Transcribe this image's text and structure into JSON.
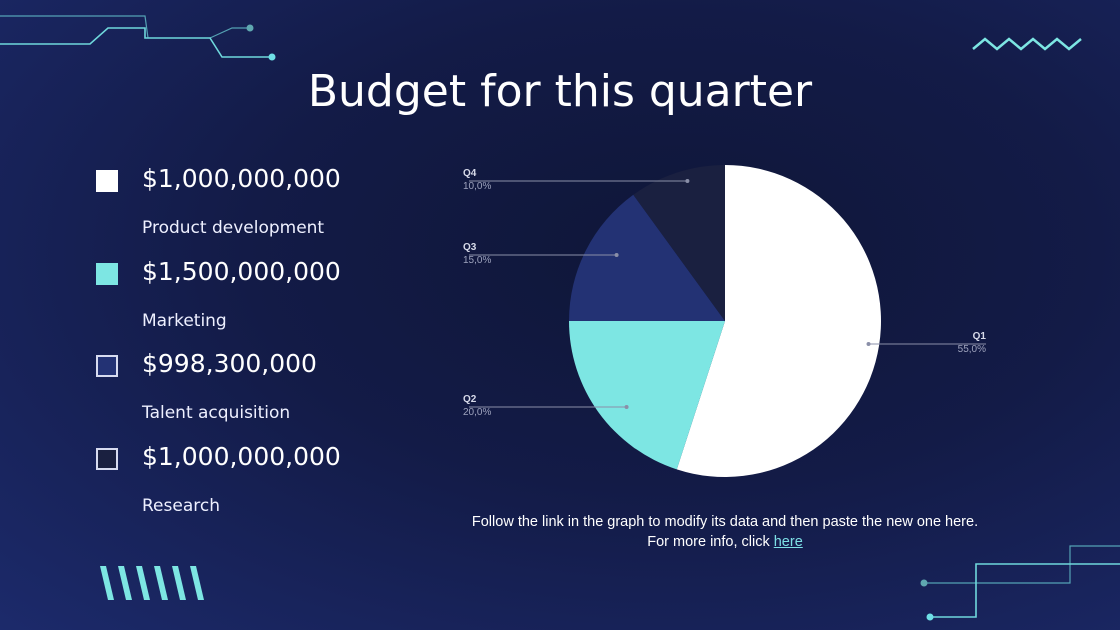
{
  "slide": {
    "title": "Budget for this quarter"
  },
  "legend": [
    {
      "amount": "$1,000,000,000",
      "label": "Product development",
      "color": "#ffffff",
      "border": "#ffffff"
    },
    {
      "amount": "$1,500,000,000",
      "label": "Marketing",
      "color": "#7de6e3",
      "border": "#7de6e3"
    },
    {
      "amount": "$998,300,000",
      "label": "Talent acquisition",
      "color": "#233274",
      "border": "#d7dbf0"
    },
    {
      "amount": "$1,000,000,000",
      "label": "Research",
      "color": "#1a2040",
      "border": "#d7dbf0"
    }
  ],
  "footnote": {
    "line1": "Follow the link in the graph to modify its data and then paste the new one here.",
    "line2_prefix": "For more info, click ",
    "link_text": "here"
  },
  "colors": {
    "accent_cyan": "#7de6e3",
    "background": "#131b47"
  },
  "chart_data": {
    "type": "pie",
    "slices": [
      {
        "name": "Q1",
        "value": 55.0,
        "label": "55,0%",
        "color": "#ffffff",
        "label_side": "right"
      },
      {
        "name": "Q2",
        "value": 20.0,
        "label": "20,0%",
        "color": "#7de6e3",
        "label_side": "left"
      },
      {
        "name": "Q3",
        "value": 15.0,
        "label": "15,0%",
        "color": "#233274",
        "label_side": "left"
      },
      {
        "name": "Q4",
        "value": 10.0,
        "label": "10,0%",
        "color": "#1a2040",
        "label_side": "left"
      }
    ],
    "start": "12 o'clock",
    "direction": "clockwise"
  }
}
